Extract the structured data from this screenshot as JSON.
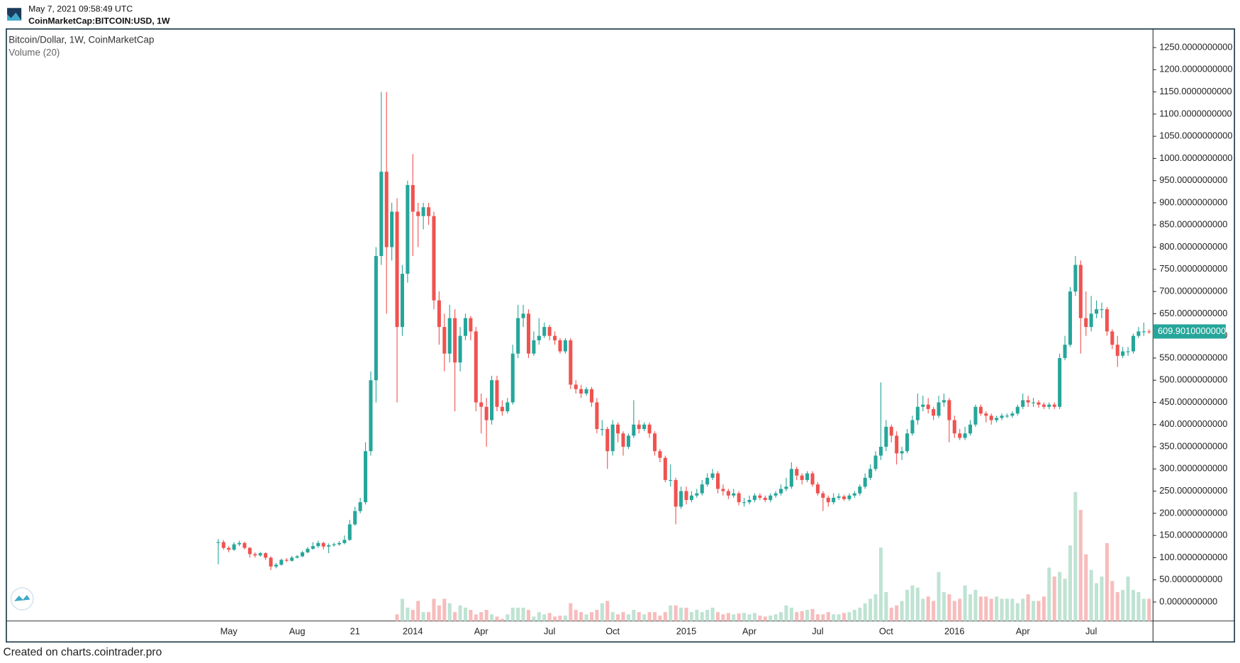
{
  "header": {
    "timestamp": "May 7, 2021 09:58:49 UTC",
    "symbol": "CoinMarketCap:BITCOIN:USD, 1W"
  },
  "footer": "Created on charts.cointrader.pro",
  "chart_data": {
    "type": "candlestick",
    "title": "Bitcoin/Dollar, 1W, CoinMarketCap",
    "indicator": "Volume (20)",
    "up_color": "#26a69a",
    "down_color": "#ef5350",
    "up_volume_color": "#bfe3d3",
    "down_volume_color": "#f7bcbc",
    "ylim": [
      -42.8,
      1291
    ],
    "yticks": [
      {
        "value": 0,
        "label": "0.0000000000"
      },
      {
        "value": 50,
        "label": "50.0000000000"
      },
      {
        "value": 100,
        "label": "100.0000000000"
      },
      {
        "value": 150,
        "label": "150.0000000000"
      },
      {
        "value": 200,
        "label": "200.0000000000"
      },
      {
        "value": 250,
        "label": "250.0000000000"
      },
      {
        "value": 300,
        "label": "300.0000000000"
      },
      {
        "value": 350,
        "label": "350.0000000000"
      },
      {
        "value": 400,
        "label": "400.0000000000"
      },
      {
        "value": 450,
        "label": "450.0000000000"
      },
      {
        "value": 500,
        "label": "500.0000000000"
      },
      {
        "value": 550,
        "label": "550.0000000000"
      },
      {
        "value": 600,
        "label": "600.0000000000"
      },
      {
        "value": 650,
        "label": "650.0000000000"
      },
      {
        "value": 700,
        "label": "700.0000000000"
      },
      {
        "value": 750,
        "label": "750.0000000000"
      },
      {
        "value": 800,
        "label": "800.0000000000"
      },
      {
        "value": 850,
        "label": "850.0000000000"
      },
      {
        "value": 900,
        "label": "900.0000000000"
      },
      {
        "value": 950,
        "label": "950.0000000000"
      },
      {
        "value": 1000,
        "label": "1000.0000000000"
      },
      {
        "value": 1050,
        "label": "1050.0000000000"
      },
      {
        "value": 1100,
        "label": "1100.0000000000"
      },
      {
        "value": 1150,
        "label": "1150.0000000000"
      },
      {
        "value": 1200,
        "label": "1200.0000000000"
      },
      {
        "value": 1250,
        "label": "1250.0000000000"
      }
    ],
    "last_price": {
      "value": 609.901,
      "label": "609.9010000000"
    },
    "categories": [
      null,
      null,
      "May",
      null,
      null,
      null,
      null,
      null,
      null,
      null,
      null,
      null,
      null,
      null,
      null,
      "Aug",
      null,
      null,
      null,
      null,
      null,
      null,
      null,
      null,
      null,
      null,
      "21",
      null,
      null,
      null,
      null,
      null,
      null,
      null,
      null,
      null,
      null,
      "2014",
      null,
      null,
      null,
      null,
      null,
      null,
      null,
      null,
      null,
      null,
      null,
      null,
      "Apr",
      null,
      null,
      null,
      null,
      null,
      null,
      null,
      null,
      null,
      null,
      null,
      null,
      "Jul",
      null,
      null,
      null,
      null,
      null,
      null,
      null,
      null,
      null,
      null,
      null,
      "Oct",
      null,
      null,
      null,
      null,
      null,
      null,
      null,
      null,
      null,
      null,
      null,
      null,
      null,
      "2015",
      null,
      null,
      null,
      null,
      null,
      null,
      null,
      null,
      null,
      null,
      null,
      "Apr",
      null,
      null,
      null,
      null,
      null,
      null,
      null,
      null,
      null,
      null,
      null,
      null,
      "Jul",
      null,
      null,
      null,
      null,
      null,
      null,
      null,
      null,
      null,
      null,
      null,
      null,
      "Oct",
      null,
      null,
      null,
      null,
      null,
      null,
      null,
      null,
      null,
      null,
      null,
      null,
      "2016",
      null,
      null,
      null,
      null,
      null,
      null,
      null,
      null,
      null,
      null,
      null,
      null,
      "Apr",
      null,
      null,
      null,
      null,
      null,
      null,
      null,
      null,
      null,
      null,
      null,
      null,
      "Jul",
      null,
      null,
      null,
      null,
      null,
      null,
      null,
      null,
      null,
      null,
      null
    ],
    "open": [
      135,
      135,
      122,
      118,
      130,
      133,
      122,
      108,
      105,
      110,
      100,
      80,
      84,
      95,
      93,
      100,
      103,
      112,
      120,
      126,
      133,
      125,
      128,
      130,
      133,
      140,
      175,
      205,
      225,
      340,
      500,
      780,
      970,
      800,
      880,
      620,
      740,
      940,
      880,
      870,
      890,
      870,
      680,
      620,
      560,
      640,
      540,
      600,
      640,
      610,
      450,
      440,
      410,
      500,
      440,
      430,
      450,
      560,
      640,
      650,
      560,
      590,
      600,
      620,
      600,
      590,
      565,
      590,
      490,
      480,
      470,
      480,
      450,
      390,
      390,
      340,
      400,
      380,
      350,
      375,
      400,
      390,
      400,
      380,
      340,
      325,
      275,
      275,
      215,
      250,
      230,
      240,
      245,
      265,
      280,
      290,
      255,
      250,
      240,
      245,
      225,
      225,
      230,
      240,
      235,
      230,
      240,
      245,
      255,
      260,
      300,
      285,
      275,
      290,
      265,
      245,
      235,
      225,
      235,
      238,
      232,
      240,
      245,
      260,
      280,
      300,
      330,
      350,
      395,
      375,
      335,
      340,
      380,
      410,
      440,
      445,
      435,
      420,
      450,
      455,
      410,
      380,
      370,
      380,
      400,
      440,
      425,
      420,
      410,
      415,
      420,
      420,
      425,
      440,
      455,
      450,
      450,
      445,
      440,
      445,
      440,
      550,
      580,
      700,
      760,
      640,
      620,
      650,
      660,
      660,
      610,
      580,
      555,
      565,
      565,
      600,
      610,
      610
    ],
    "high": [
      142,
      140,
      126,
      135,
      138,
      136,
      124,
      112,
      113,
      112,
      103,
      88,
      98,
      99,
      104,
      106,
      115,
      124,
      135,
      138,
      136,
      132,
      134,
      137,
      150,
      185,
      215,
      235,
      360,
      520,
      800,
      1150,
      1150,
      900,
      910,
      760,
      950,
      1010,
      900,
      900,
      900,
      880,
      700,
      650,
      670,
      660,
      620,
      650,
      645,
      620,
      470,
      460,
      510,
      510,
      455,
      460,
      580,
      670,
      670,
      660,
      610,
      640,
      630,
      625,
      610,
      595,
      595,
      595,
      500,
      490,
      485,
      485,
      460,
      410,
      395,
      410,
      405,
      385,
      380,
      455,
      410,
      405,
      405,
      385,
      345,
      330,
      310,
      280,
      260,
      260,
      250,
      255,
      275,
      290,
      300,
      295,
      265,
      255,
      255,
      250,
      235,
      240,
      245,
      245,
      240,
      245,
      250,
      265,
      280,
      315,
      305,
      290,
      295,
      295,
      270,
      250,
      240,
      245,
      245,
      242,
      245,
      250,
      265,
      290,
      310,
      340,
      495,
      410,
      400,
      385,
      350,
      390,
      420,
      470,
      465,
      460,
      440,
      465,
      470,
      460,
      420,
      390,
      395,
      410,
      445,
      445,
      430,
      425,
      420,
      425,
      425,
      430,
      445,
      470,
      465,
      460,
      455,
      450,
      450,
      450,
      560,
      600,
      710,
      780,
      770,
      700,
      690,
      680,
      675,
      665,
      615,
      600,
      575,
      575,
      605,
      620,
      630,
      615
    ],
    "low": [
      85,
      118,
      112,
      115,
      126,
      118,
      100,
      100,
      102,
      95,
      72,
      76,
      82,
      90,
      91,
      98,
      101,
      110,
      118,
      122,
      118,
      110,
      125,
      127,
      130,
      138,
      172,
      200,
      220,
      330,
      450,
      760,
      650,
      770,
      450,
      600,
      720,
      780,
      800,
      840,
      850,
      660,
      580,
      520,
      540,
      430,
      520,
      590,
      590,
      430,
      380,
      350,
      400,
      430,
      420,
      425,
      445,
      550,
      620,
      550,
      555,
      580,
      595,
      590,
      580,
      560,
      560,
      480,
      470,
      460,
      465,
      440,
      380,
      375,
      300,
      330,
      360,
      330,
      345,
      370,
      380,
      385,
      370,
      330,
      315,
      270,
      260,
      175,
      210,
      220,
      225,
      235,
      240,
      260,
      275,
      245,
      240,
      232,
      235,
      218,
      215,
      220,
      225,
      230,
      225,
      225,
      235,
      240,
      250,
      255,
      275,
      265,
      270,
      260,
      240,
      205,
      215,
      220,
      230,
      228,
      228,
      235,
      240,
      255,
      275,
      295,
      320,
      340,
      360,
      310,
      320,
      335,
      375,
      400,
      430,
      425,
      410,
      415,
      440,
      360,
      370,
      365,
      365,
      375,
      395,
      420,
      405,
      400,
      405,
      410,
      415,
      415,
      420,
      435,
      440,
      440,
      438,
      435,
      435,
      435,
      435,
      545,
      575,
      690,
      560,
      600,
      610,
      640,
      640,
      600,
      570,
      530,
      550,
      555,
      560,
      595,
      600,
      605
    ],
    "close": [
      135,
      122,
      118,
      130,
      133,
      122,
      108,
      105,
      110,
      100,
      80,
      84,
      95,
      93,
      100,
      103,
      112,
      120,
      126,
      133,
      125,
      128,
      130,
      133,
      140,
      175,
      205,
      225,
      340,
      500,
      780,
      970,
      800,
      880,
      620,
      740,
      940,
      880,
      870,
      890,
      870,
      680,
      620,
      560,
      640,
      540,
      600,
      640,
      610,
      450,
      440,
      410,
      500,
      440,
      430,
      450,
      560,
      640,
      650,
      560,
      590,
      600,
      620,
      600,
      590,
      565,
      590,
      490,
      480,
      470,
      480,
      450,
      390,
      390,
      340,
      400,
      380,
      350,
      375,
      400,
      390,
      400,
      380,
      340,
      325,
      275,
      275,
      215,
      250,
      230,
      240,
      245,
      265,
      280,
      290,
      255,
      250,
      240,
      245,
      225,
      225,
      230,
      240,
      235,
      230,
      240,
      245,
      255,
      260,
      300,
      285,
      275,
      290,
      265,
      245,
      235,
      225,
      235,
      238,
      232,
      240,
      245,
      260,
      280,
      300,
      330,
      350,
      395,
      375,
      335,
      340,
      380,
      410,
      440,
      445,
      435,
      420,
      450,
      455,
      410,
      380,
      370,
      380,
      400,
      440,
      425,
      420,
      410,
      415,
      420,
      420,
      425,
      440,
      455,
      450,
      450,
      445,
      440,
      445,
      440,
      550,
      580,
      700,
      760,
      640,
      620,
      650,
      660,
      660,
      610,
      580,
      555,
      565,
      565,
      600,
      610,
      610,
      609.901
    ],
    "volume": [
      null,
      null,
      null,
      null,
      null,
      null,
      null,
      null,
      null,
      null,
      null,
      null,
      null,
      null,
      null,
      null,
      null,
      null,
      null,
      null,
      null,
      null,
      null,
      null,
      null,
      null,
      null,
      null,
      null,
      null,
      null,
      null,
      null,
      null,
      15,
      50,
      30,
      25,
      45,
      20,
      20,
      50,
      35,
      50,
      40,
      20,
      35,
      30,
      25,
      15,
      20,
      25,
      15,
      10,
      5,
      15,
      30,
      30,
      30,
      25,
      10,
      20,
      15,
      18,
      10,
      12,
      12,
      40,
      25,
      20,
      15,
      20,
      25,
      40,
      45,
      20,
      15,
      20,
      15,
      25,
      20,
      15,
      20,
      20,
      12,
      20,
      35,
      35,
      30,
      30,
      20,
      25,
      20,
      25,
      30,
      20,
      15,
      18,
      15,
      17,
      18,
      15,
      18,
      12,
      10,
      12,
      15,
      20,
      35,
      30,
      20,
      22,
      25,
      27,
      15,
      15,
      20,
      15,
      15,
      18,
      20,
      25,
      30,
      40,
      50,
      60,
      165,
      65,
      30,
      35,
      45,
      70,
      80,
      75,
      50,
      55,
      45,
      110,
      65,
      60,
      45,
      50,
      80,
      60,
      70,
      55,
      55,
      50,
      55,
      50,
      50,
      50,
      40,
      50,
      60,
      45,
      45,
      55,
      120,
      100,
      110,
      95,
      170,
      290,
      250,
      150,
      115,
      85,
      100,
      175,
      90,
      65,
      70,
      100,
      70,
      65,
      50,
      50
    ]
  }
}
